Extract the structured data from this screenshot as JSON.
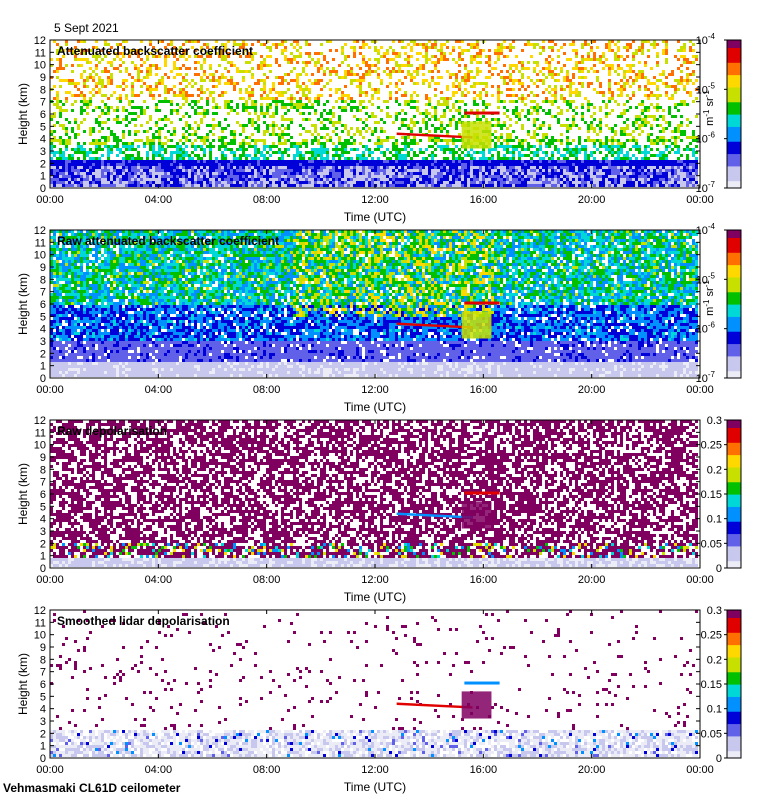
{
  "header": {
    "date": "5 Sept 2021"
  },
  "footer": {
    "station": "Vehmasmaki CL61D ceilometer"
  },
  "colors": {
    "scale": [
      "#ececf6",
      "#c8c8ee",
      "#6060e8",
      "#0000d8",
      "#0090ff",
      "#00d8d8",
      "#00c000",
      "#c8e000",
      "#ffd800",
      "#ff7000",
      "#e00000",
      "#800060"
    ]
  },
  "chart_data": [
    {
      "type": "heatmap",
      "title": "Attenuated backscatter coefficient",
      "xlabel": "Time (UTC)",
      "ylabel": "Height (km)",
      "x_ticks": [
        "00:00",
        "04:00",
        "08:00",
        "12:00",
        "16:00",
        "20:00",
        "00:00"
      ],
      "y_ticks": [
        "0",
        "1",
        "2",
        "3",
        "4",
        "5",
        "6",
        "7",
        "8",
        "9",
        "10",
        "11",
        "12"
      ],
      "ylim": [
        0,
        12
      ],
      "colorbar": {
        "scale": "log",
        "range": [
          1e-07,
          0.0001
        ],
        "ticks": [
          "10",
          "10",
          "10",
          "10"
        ],
        "tick_exponents": [
          "-7",
          "-6",
          "-5",
          "-4"
        ],
        "label": "m",
        "label_exp1": "-1",
        "label_mid": " sr",
        "label_exp2": "-1"
      },
      "features": [
        {
          "name": "boundary layer",
          "x": [
            "00:00",
            "24:00"
          ],
          "y": [
            0,
            2.3
          ]
        },
        {
          "name": "elevated layer",
          "x": [
            "13:00",
            "16:40"
          ],
          "y": [
            4.2,
            6.0
          ]
        }
      ]
    },
    {
      "type": "heatmap",
      "title": "Raw attenuated backscatter coefficient",
      "xlabel": "Time (UTC)",
      "ylabel": "Height (km)",
      "x_ticks": [
        "00:00",
        "04:00",
        "08:00",
        "12:00",
        "16:00",
        "20:00",
        "00:00"
      ],
      "y_ticks": [
        "0",
        "1",
        "2",
        "3",
        "4",
        "5",
        "6",
        "7",
        "8",
        "9",
        "10",
        "11",
        "12"
      ],
      "ylim": [
        0,
        12
      ],
      "colorbar": {
        "scale": "log",
        "range": [
          1e-07,
          0.0001
        ],
        "ticks": [
          "10",
          "10",
          "10",
          "10"
        ],
        "tick_exponents": [
          "-7",
          "-6",
          "-5",
          "-4"
        ],
        "label": "m",
        "label_exp1": "-1",
        "label_mid": " sr",
        "label_exp2": "-1"
      },
      "features": [
        {
          "name": "elevated layer",
          "x": [
            "13:00",
            "16:40"
          ],
          "y": [
            4.2,
            6.2
          ]
        }
      ]
    },
    {
      "type": "heatmap",
      "title": "Raw depolarisation",
      "xlabel": "Time (UTC)",
      "ylabel": "Height (km)",
      "x_ticks": [
        "00:00",
        "04:00",
        "08:00",
        "12:00",
        "16:00",
        "20:00",
        "00:00"
      ],
      "y_ticks": [
        "0",
        "1",
        "2",
        "3",
        "4",
        "5",
        "6",
        "7",
        "8",
        "9",
        "10",
        "11",
        "12"
      ],
      "ylim": [
        0,
        12
      ],
      "colorbar": {
        "scale": "linear",
        "range": [
          0,
          0.3
        ],
        "ticks": [
          "0",
          "0.05",
          "0.1",
          "0.15",
          "0.2",
          "0.25",
          "0.3"
        ]
      }
    },
    {
      "type": "heatmap",
      "title": "Smoothed lidar depolarisation",
      "xlabel": "Time (UTC)",
      "ylabel": "Height (km)",
      "x_ticks": [
        "00:00",
        "04:00",
        "08:00",
        "12:00",
        "16:00",
        "20:00",
        "00:00"
      ],
      "y_ticks": [
        "0",
        "1",
        "2",
        "3",
        "4",
        "5",
        "6",
        "7",
        "8",
        "9",
        "10",
        "11",
        "12"
      ],
      "ylim": [
        0,
        12
      ],
      "colorbar": {
        "scale": "linear",
        "range": [
          0,
          0.3
        ],
        "ticks": [
          "0",
          "0.05",
          "0.1",
          "0.15",
          "0.2",
          "0.25",
          "0.3"
        ]
      },
      "features": [
        {
          "name": "elevated layer",
          "x": [
            "13:00",
            "16:40"
          ],
          "y": [
            4.0,
            6.2
          ]
        }
      ]
    }
  ]
}
